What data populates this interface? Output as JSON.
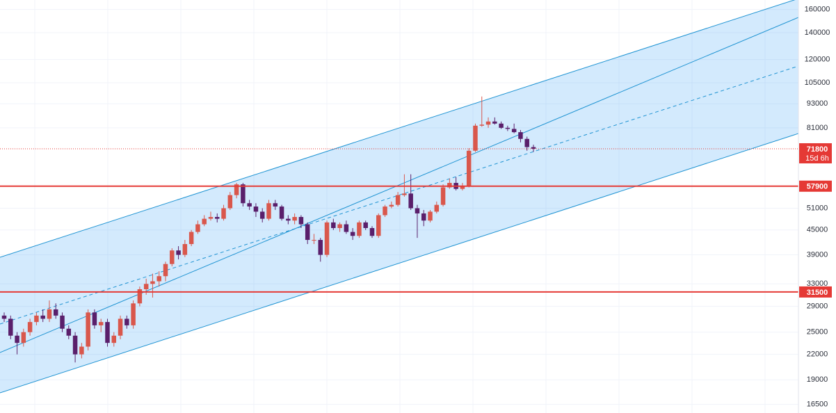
{
  "chart_data": {
    "type": "candlestick",
    "log_scale": true,
    "grid": true,
    "ylim": [
      15700,
      169000
    ],
    "yticks": [
      16500,
      19000,
      22000,
      25000,
      29000,
      33000,
      39000,
      45000,
      51000,
      81000,
      93000,
      105000,
      120000,
      140000,
      160000
    ],
    "up_color": "#d9574c",
    "down_color": "#5a1f6b",
    "ohlc": [
      [
        27500,
        28000,
        26500,
        27000
      ],
      [
        27000,
        27500,
        24000,
        24500
      ],
      [
        24500,
        25000,
        22000,
        23500
      ],
      [
        23500,
        25500,
        23000,
        25000
      ],
      [
        25000,
        27000,
        24500,
        26500
      ],
      [
        26500,
        28000,
        26000,
        27500
      ],
      [
        27500,
        28500,
        26500,
        27000
      ],
      [
        27000,
        30000,
        26500,
        28500
      ],
      [
        28500,
        29500,
        27000,
        27500
      ],
      [
        27500,
        28000,
        25000,
        25500
      ],
      [
        25500,
        26000,
        24000,
        24500
      ],
      [
        24500,
        25000,
        21000,
        22000
      ],
      [
        22000,
        23500,
        21500,
        23000
      ],
      [
        23000,
        28500,
        22500,
        28000
      ],
      [
        28000,
        28500,
        25500,
        26000
      ],
      [
        26000,
        27000,
        25000,
        26500
      ],
      [
        26500,
        27000,
        23000,
        23500
      ],
      [
        23500,
        25000,
        23000,
        24500
      ],
      [
        24500,
        27500,
        24000,
        27000
      ],
      [
        27000,
        27500,
        25500,
        26000
      ],
      [
        26000,
        30000,
        25500,
        29500
      ],
      [
        29500,
        32500,
        29000,
        32000
      ],
      [
        32000,
        34000,
        31000,
        33000
      ],
      [
        33000,
        35000,
        30500,
        33500
      ],
      [
        33500,
        35500,
        32500,
        34500
      ],
      [
        34500,
        37500,
        33500,
        37000
      ],
      [
        37000,
        40500,
        36500,
        40000
      ],
      [
        40000,
        41000,
        38000,
        39000
      ],
      [
        39000,
        42500,
        38500,
        41500
      ],
      [
        41500,
        45000,
        41000,
        44500
      ],
      [
        44500,
        47500,
        44000,
        46500
      ],
      [
        46500,
        49000,
        46000,
        48000
      ],
      [
        48000,
        50000,
        47500,
        48500
      ],
      [
        48500,
        49500,
        47000,
        48000
      ],
      [
        48000,
        52000,
        47500,
        51000
      ],
      [
        51000,
        56000,
        50500,
        55000
      ],
      [
        55000,
        59000,
        54000,
        58500
      ],
      [
        58500,
        59000,
        51500,
        52500
      ],
      [
        52500,
        53500,
        50500,
        51500
      ],
      [
        51500,
        52500,
        48500,
        50000
      ],
      [
        50000,
        51000,
        47000,
        48000
      ],
      [
        48000,
        53500,
        47500,
        52500
      ],
      [
        52500,
        53500,
        50500,
        51500
      ],
      [
        51500,
        52000,
        47500,
        48000
      ],
      [
        48000,
        49000,
        46500,
        47500
      ],
      [
        47500,
        49500,
        46500,
        48500
      ],
      [
        48500,
        49000,
        45500,
        46500
      ],
      [
        46500,
        47000,
        41500,
        42500
      ],
      [
        42500,
        44000,
        41500,
        42500
      ],
      [
        42500,
        43000,
        37500,
        39000
      ],
      [
        39000,
        47500,
        38500,
        47000
      ],
      [
        47000,
        48000,
        45000,
        45500
      ],
      [
        45500,
        47000,
        44500,
        46500
      ],
      [
        46500,
        47500,
        44000,
        44500
      ],
      [
        44500,
        45500,
        42500,
        43500
      ],
      [
        43500,
        47500,
        43000,
        47000
      ],
      [
        47000,
        47500,
        45000,
        45500
      ],
      [
        45500,
        46000,
        43000,
        43500
      ],
      [
        43500,
        49500,
        43000,
        49000
      ],
      [
        49000,
        52000,
        48500,
        51500
      ],
      [
        51500,
        53000,
        51000,
        52000
      ],
      [
        52000,
        56000,
        51500,
        55000
      ],
      [
        55000,
        62000,
        54500,
        55500
      ],
      [
        55500,
        62000,
        50500,
        51000
      ],
      [
        51000,
        52000,
        43000,
        49500
      ],
      [
        49500,
        50500,
        46000,
        47500
      ],
      [
        47500,
        50500,
        47000,
        50000
      ],
      [
        50000,
        53000,
        49500,
        52000
      ],
      [
        52000,
        58500,
        51500,
        57500
      ],
      [
        57500,
        60500,
        57000,
        59000
      ],
      [
        59000,
        61000,
        56500,
        57000
      ],
      [
        57000,
        59000,
        56500,
        58000
      ],
      [
        58000,
        72000,
        57500,
        71000
      ],
      [
        71000,
        83000,
        70500,
        82000
      ],
      [
        82000,
        97000,
        81500,
        82500
      ],
      [
        82500,
        86000,
        81000,
        84000
      ],
      [
        84000,
        86000,
        82500,
        83000
      ],
      [
        83000,
        84000,
        80500,
        81000
      ],
      [
        81000,
        82000,
        79500,
        80500
      ],
      [
        80500,
        83000,
        78500,
        79000
      ],
      [
        79000,
        80000,
        74500,
        76000
      ],
      [
        76000,
        77000,
        71000,
        72500
      ],
      [
        72500,
        73500,
        70500,
        71800
      ]
    ],
    "price_lines": [
      {
        "value": 57900,
        "color": "#e53935"
      },
      {
        "value": 31500,
        "color": "#e53935"
      }
    ],
    "last_price": {
      "value": 71800,
      "countdown": "15d 6h",
      "color": "#e53935"
    }
  }
}
